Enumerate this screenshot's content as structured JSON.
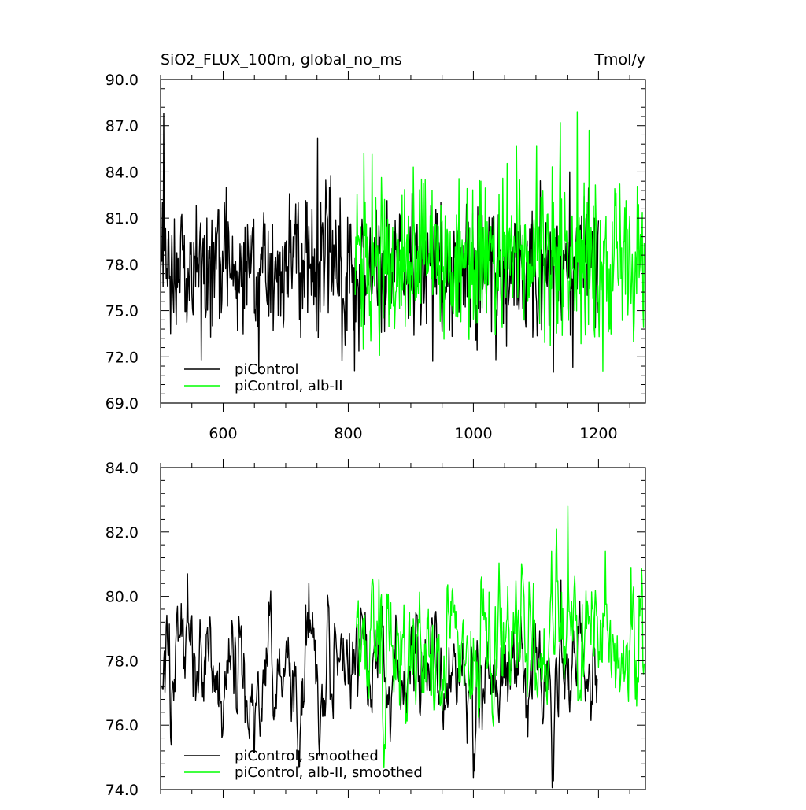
{
  "figure": {
    "title_left": "SiO2_FLUX_100m, global_no_ms",
    "title_right": "Tmol/y"
  },
  "colors": {
    "black": "#000000",
    "green": "#00ff00"
  },
  "chart_data": [
    {
      "type": "line",
      "title": "SiO2_FLUX_100m, global_no_ms",
      "units": "Tmol/y",
      "xlim": [
        500,
        1275
      ],
      "ylim": [
        69.0,
        90.0
      ],
      "yticks": [
        69.0,
        72.0,
        75.0,
        78.0,
        81.0,
        84.0,
        87.0,
        90.0
      ],
      "ytick_labels": [
        "69.0",
        "72.0",
        "75.0",
        "78.0",
        "81.0",
        "84.0",
        "87.0",
        "90.0"
      ],
      "xticks": [
        600,
        800,
        1000,
        1200
      ],
      "xtick_labels": [
        "600",
        "800",
        "1000",
        "1200"
      ],
      "legend_position": "bottom-left",
      "series": [
        {
          "name": "piControl",
          "color": "#000000",
          "x_start": 500,
          "x_end": 1200,
          "mean": 77.8,
          "stdev": 2.2,
          "peaks": [
            [
              505,
              87.8
            ],
            [
              751,
              86.2
            ],
            [
              657,
              71.0
            ],
            [
              565,
              71.8
            ],
            [
              810,
              71.1
            ],
            [
              1128,
              71.0
            ]
          ]
        },
        {
          "name": "piControl, alb-II",
          "color": "#00ff00",
          "x_start": 811,
          "x_end": 1273,
          "mean": 78.3,
          "stdev": 2.5,
          "peaks": [
            [
              1166,
              87.9
            ],
            [
              1139,
              87.2
            ],
            [
              825,
              85.2
            ],
            [
              850,
              72.1
            ],
            [
              1272,
              73.9
            ],
            [
              1185,
              86.7
            ]
          ]
        }
      ]
    },
    {
      "type": "line",
      "xlim": [
        500,
        1275
      ],
      "ylim": [
        74.0,
        84.0
      ],
      "yticks": [
        74.0,
        76.0,
        78.0,
        80.0,
        82.0,
        84.0
      ],
      "ytick_labels": [
        "74.0",
        "76.0",
        "78.0",
        "80.0",
        "82.0",
        "84.0"
      ],
      "xticks": [
        600,
        800,
        1000,
        1200
      ],
      "legend_position": "bottom-left",
      "series": [
        {
          "name": "piControl, smoothed",
          "color": "#000000",
          "x_start": 502,
          "x_end": 1198,
          "mean": 77.7,
          "stdev": 0.95,
          "peaks": [
            [
              543,
              80.7
            ],
            [
              737,
              80.4
            ],
            [
              1140,
              80.5
            ],
            [
              1001,
              75.1
            ],
            [
              1127,
              74.6
            ],
            [
              721,
              75.2
            ]
          ]
        },
        {
          "name": "piControl, alb-II, smoothed",
          "color": "#00ff00",
          "x_start": 813,
          "x_end": 1273,
          "mean": 78.5,
          "stdev": 1.1,
          "peaks": [
            [
              1151,
              82.8
            ],
            [
              1125,
              81.4
            ],
            [
              1211,
              81.4
            ],
            [
              858,
              75.4
            ],
            [
              1252,
              80.9
            ]
          ]
        }
      ]
    }
  ]
}
